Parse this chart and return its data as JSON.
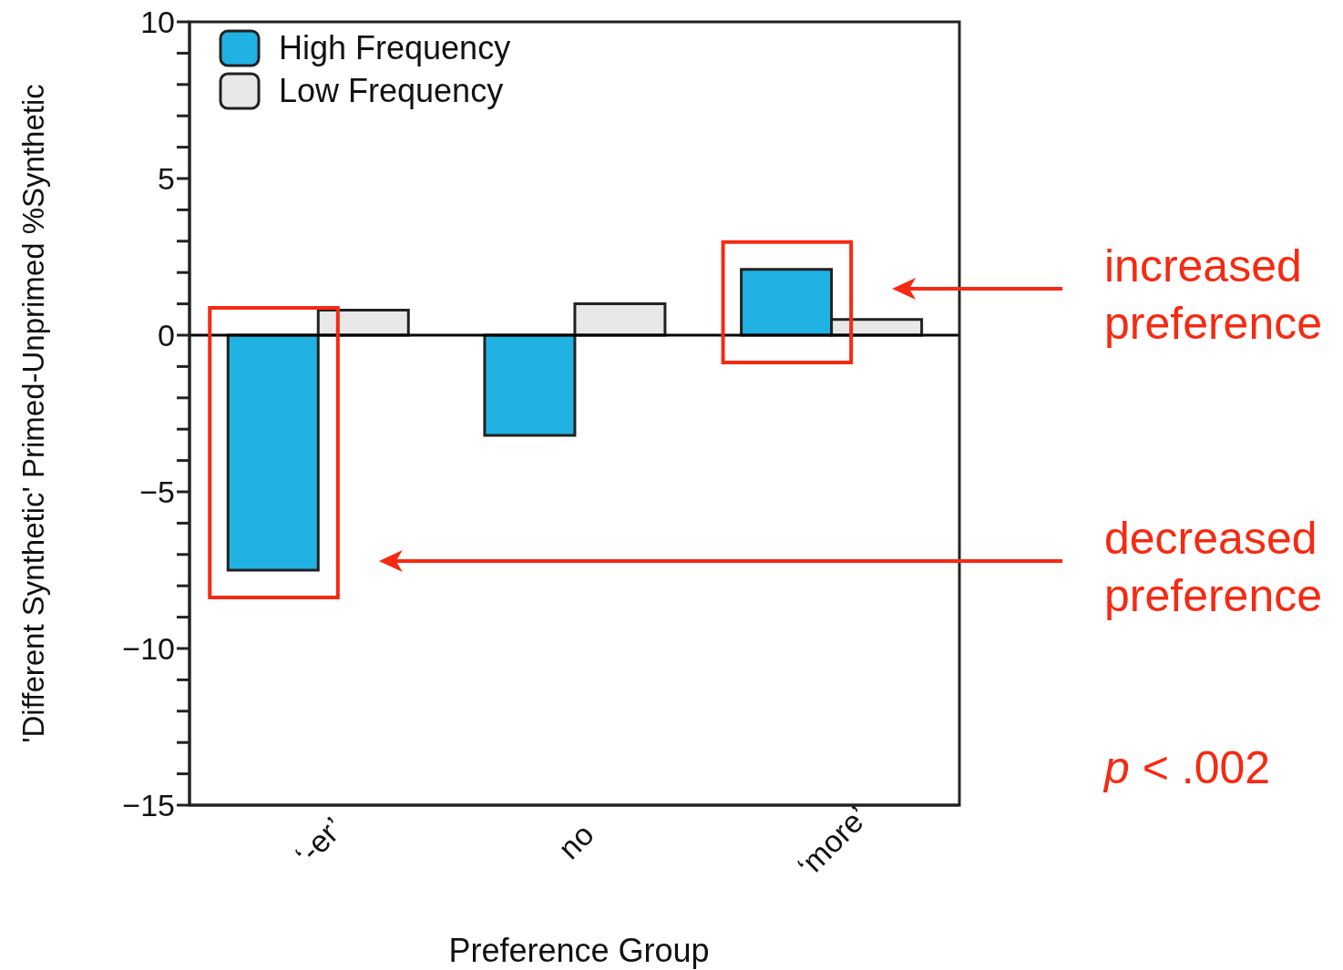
{
  "chart_data": {
    "type": "bar",
    "xlabel": "Preference Group",
    "ylabel": "'Different Synthetic' Primed-Unprimed %Synthetic",
    "categories": [
      "‘-er’",
      "no",
      "‘more’"
    ],
    "series": [
      {
        "name": "High Frequency",
        "color": "#20b2e3",
        "values": [
          -7.5,
          -3.2,
          2.1
        ]
      },
      {
        "name": "Low Frequency",
        "color": "#e8e8e8",
        "values": [
          0.8,
          1.0,
          0.5
        ]
      }
    ],
    "ylim": [
      -15,
      10
    ],
    "yticks": [
      {
        "value": -15,
        "label": "−15"
      },
      {
        "value": -14,
        "label": null
      },
      {
        "value": -13,
        "label": null
      },
      {
        "value": -12,
        "label": null
      },
      {
        "value": -11,
        "label": null
      },
      {
        "value": -10,
        "label": "−10"
      },
      {
        "value": -9,
        "label": null
      },
      {
        "value": -8,
        "label": null
      },
      {
        "value": -7,
        "label": null
      },
      {
        "value": -6,
        "label": null
      },
      {
        "value": -5,
        "label": "−5"
      },
      {
        "value": -4,
        "label": null
      },
      {
        "value": -3,
        "label": null
      },
      {
        "value": -2,
        "label": null
      },
      {
        "value": -1,
        "label": null
      },
      0,
      {
        "value": 1,
        "label": null
      },
      {
        "value": 2,
        "label": null
      },
      {
        "value": 3,
        "label": null
      },
      {
        "value": 4,
        "label": null
      },
      5,
      {
        "value": 6,
        "label": null
      },
      {
        "value": 7,
        "label": null
      },
      {
        "value": 8,
        "label": null
      },
      {
        "value": 9,
        "label": null
      },
      10
    ],
    "ref_lines": [
      {
        "axis": "y",
        "value": 0,
        "color": "#000000"
      }
    ],
    "legend": "top left",
    "annotations": [
      "increased preference",
      "decreased preference",
      "p < .002"
    ]
  }
}
